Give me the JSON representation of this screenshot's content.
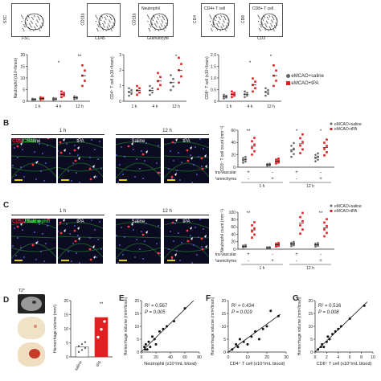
{
  "facs": {
    "panels": [
      {
        "x_label": "FSC",
        "y_label": "SSC",
        "gate_label": ""
      },
      {
        "x_label": "CD45",
        "y_label": "CD11b",
        "gate_label": ""
      },
      {
        "x_label": "Granulocyte",
        "y_label": "CD11b",
        "gate_label": "Neutrophil"
      },
      {
        "x_label": "",
        "y_label": "CD4",
        "gate_label": "CD4+ T cell"
      },
      {
        "x_label": "CD3",
        "y_label": "CD8",
        "gate_label": "CD8+ T cell"
      }
    ]
  },
  "legend": {
    "saline": "eMCAO+saline",
    "tpa": "eMCAO+tPA",
    "colors": {
      "saline": "#666666",
      "tpa": "#e02020"
    }
  },
  "panel_a_charts": [
    {
      "ylabel": "Neutrophil (x10⁴/brain)",
      "categories": [
        "1 h",
        "4 h",
        "12 h"
      ],
      "ylim": [
        0,
        20
      ],
      "yticks": [
        "0",
        "5",
        "10",
        "15",
        "20"
      ],
      "series": [
        {
          "name": "eMCAO+saline",
          "values": [
            0.8,
            1.0,
            1.5
          ]
        },
        {
          "name": "eMCAO+tPA",
          "values": [
            1.2,
            3.0,
            11.0
          ]
        }
      ],
      "sig": [
        "",
        "*",
        "**"
      ]
    },
    {
      "ylabel": "CD4⁺ T cell (x10⁴/brain)",
      "categories": [
        "1 h",
        "4 h",
        "12 h"
      ],
      "ylim": [
        0,
        3
      ],
      "yticks": [
        "0",
        "1",
        "2",
        "3"
      ],
      "series": [
        {
          "name": "eMCAO+saline",
          "values": [
            0.6,
            0.7,
            1.2
          ]
        },
        {
          "name": "eMCAO+tPA",
          "values": [
            0.7,
            1.3,
            2.0
          ]
        }
      ],
      "sig": [
        "",
        "",
        "*"
      ]
    },
    {
      "ylabel": "CD8⁺ T cell (x10⁴/brain)",
      "categories": [
        "1 h",
        "4 h",
        "12 h"
      ],
      "ylim": [
        0,
        2
      ],
      "yticks": [
        "0",
        "0.5",
        "1.0",
        "1.5",
        "2.0"
      ],
      "series": [
        {
          "name": "eMCAO+saline",
          "values": [
            0.2,
            0.3,
            0.4
          ]
        },
        {
          "name": "eMCAO+tPA",
          "values": [
            0.3,
            0.7,
            1.1
          ]
        }
      ],
      "sig": [
        "",
        "*",
        "*"
      ]
    }
  ],
  "panel_b": {
    "letter": "B",
    "channels": [
      "CD3",
      "CD31"
    ],
    "channel_colors": [
      "#e02020",
      "#22cc22"
    ],
    "time_labels": [
      "1 h",
      "12 h"
    ],
    "cond_labels": [
      "Saline",
      "tPA",
      "Saline",
      "tPA"
    ],
    "chart": {
      "ylabel": "CD3⁺ T cell count (mm⁻²)",
      "ylim": [
        0,
        60
      ],
      "yticks": [
        "0",
        "20",
        "40",
        "60"
      ],
      "row_labels": [
        "Intra-vascular",
        "Parenchyma"
      ],
      "row_signs": [
        [
          "+",
          "-",
          "+",
          "-"
        ],
        [
          "-",
          "+",
          "-",
          "+"
        ]
      ],
      "time_labels": [
        "1 h",
        "12 h"
      ],
      "saline_means": [
        12,
        4,
        28,
        16
      ],
      "tpa_means": [
        34,
        10,
        38,
        32
      ],
      "sig": [
        "**",
        "",
        "*",
        "*"
      ]
    }
  },
  "panel_c": {
    "letter": "C",
    "channels": [
      "CD31",
      "Neutrophil"
    ],
    "channel_colors": [
      "#e02020",
      "#22cc22"
    ],
    "time_labels": [
      "1 h",
      "12 h"
    ],
    "cond_labels": [
      "Saline",
      "tPA",
      "Saline",
      "tPA"
    ],
    "chart": {
      "ylabel": "Neutrophil count (mm⁻²)",
      "ylim": [
        0,
        100
      ],
      "yticks": [
        "0",
        "20",
        "40",
        "60",
        "80",
        "100"
      ],
      "row_labels": [
        "Intra-vascular",
        "Parenchyma"
      ],
      "row_signs": [
        [
          "+",
          "-",
          "+",
          "-"
        ],
        [
          "-",
          "+",
          "-",
          "+"
        ]
      ],
      "time_labels": [
        "1 h",
        "12 h"
      ],
      "saline_means": [
        8,
        4,
        14,
        12
      ],
      "tpa_means": [
        52,
        12,
        70,
        58
      ],
      "sig": [
        "**",
        "",
        "",
        "**"
      ]
    }
  },
  "panel_d": {
    "letter": "D",
    "image_label": "T2*",
    "ylabel": "Hemorrhage volume (mm³)",
    "ylim": [
      0,
      20
    ],
    "yticks": [
      "0",
      "5",
      "10",
      "15",
      "20"
    ],
    "categories": [
      "saline",
      "tPA"
    ],
    "values": [
      3.5,
      14.0
    ],
    "sig": "**"
  },
  "correlations": [
    {
      "letter": "E",
      "ylabel": "Hemorrhage volume (mm³/brain)",
      "xlabel": "Neutrophil (x10⁴/mL blood)",
      "r2": "R² = 0.567",
      "p": "P = 0.005",
      "xlim": [
        0,
        80
      ],
      "ylim": [
        0,
        20
      ],
      "xticks": [
        "0",
        "20",
        "40",
        "60",
        "80"
      ],
      "yticks": [
        "0",
        "5",
        "10",
        "15",
        "20"
      ],
      "points": [
        [
          4,
          2
        ],
        [
          6,
          3
        ],
        [
          8,
          1
        ],
        [
          10,
          4
        ],
        [
          12,
          2
        ],
        [
          15,
          6
        ],
        [
          18,
          5
        ],
        [
          20,
          3
        ],
        [
          25,
          8
        ],
        [
          30,
          9
        ],
        [
          35,
          10
        ],
        [
          45,
          12
        ],
        [
          60,
          17
        ],
        [
          5,
          1
        ]
      ]
    },
    {
      "letter": "F",
      "ylabel": "Hemorrhage volume (mm³/brain)",
      "xlabel": "CD4⁺ T cell (x10⁴/mL blood)",
      "r2": "R² = 0.434",
      "p": "P = 0.019",
      "xlim": [
        0,
        30
      ],
      "ylim": [
        0,
        20
      ],
      "xticks": [
        "0",
        "10",
        "20",
        "30"
      ],
      "yticks": [
        "0",
        "5",
        "10",
        "15",
        "20"
      ],
      "points": [
        [
          2,
          1
        ],
        [
          4,
          3
        ],
        [
          5,
          2
        ],
        [
          6,
          5
        ],
        [
          8,
          4
        ],
        [
          10,
          3
        ],
        [
          12,
          6
        ],
        [
          14,
          8
        ],
        [
          16,
          5
        ],
        [
          18,
          9
        ],
        [
          20,
          10
        ],
        [
          22,
          16
        ],
        [
          26,
          14
        ]
      ]
    },
    {
      "letter": "G",
      "ylabel": "Hemorrhage volume (mm³/brain)",
      "xlabel": "CD8⁺ T cell (x10⁴/mL blood)",
      "r2": "R² = 0.516",
      "p": "P = 0.008",
      "xlim": [
        0,
        10
      ],
      "ylim": [
        0,
        20
      ],
      "xticks": [
        "0",
        "2",
        "4",
        "6",
        "8",
        "10"
      ],
      "yticks": [
        "0",
        "5",
        "10",
        "15",
        "20"
      ],
      "points": [
        [
          0.5,
          1
        ],
        [
          1,
          2
        ],
        [
          1.2,
          3
        ],
        [
          1.5,
          2
        ],
        [
          2,
          4
        ],
        [
          2.2,
          6
        ],
        [
          2.5,
          5
        ],
        [
          3,
          7
        ],
        [
          3.5,
          8
        ],
        [
          4,
          9
        ],
        [
          4.5,
          10
        ],
        [
          6,
          13
        ],
        [
          8.5,
          18
        ]
      ]
    }
  ]
}
